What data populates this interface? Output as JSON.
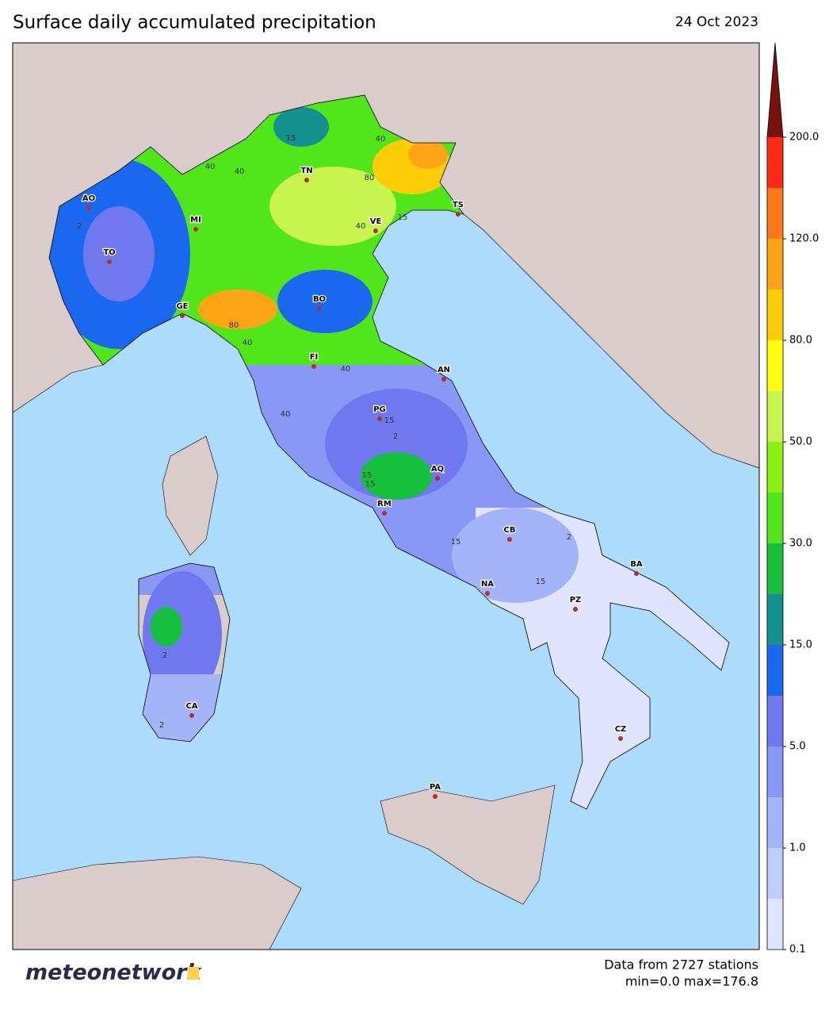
{
  "header": {
    "title": "Surface daily accumulated precipitation",
    "date": "24 Oct 2023"
  },
  "map": {
    "stations": [
      "AO",
      "TO",
      "MI",
      "GE",
      "TN",
      "VE",
      "TS",
      "BO",
      "FI",
      "AN",
      "PG",
      "AQ",
      "RM",
      "CB",
      "NA",
      "BA",
      "PZ",
      "CA",
      "CZ",
      "PA"
    ],
    "contour_labels": [
      "15",
      "40",
      "40",
      "80",
      "40",
      "15",
      "40",
      "80",
      "40",
      "40",
      "40",
      "15",
      "2",
      "15",
      "15",
      "2",
      "15",
      "2",
      "2",
      "15",
      "2"
    ]
  },
  "legend": {
    "colors": [
      "#dee5fd",
      "#bfcdfb",
      "#a3b4f8",
      "#8898f4",
      "#6f78ee",
      "#1a68f0",
      "#14908f",
      "#16c03c",
      "#50e61a",
      "#8cef12",
      "#c8f550",
      "#ffff10",
      "#ffcc08",
      "#ffa414",
      "#ff7818",
      "#ff2a14",
      "#7a1010"
    ],
    "ticks": [
      0.1,
      {
        "value": 1,
        "label": "1.0"
      },
      {
        "value": 5,
        "label": "5.0"
      },
      {
        "value": 15,
        "label": "15.0"
      },
      {
        "value": 30,
        "label": "30.0"
      },
      {
        "value": 50,
        "label": "50.0"
      },
      {
        "value": 80,
        "label": "80.0"
      },
      {
        "value": 120,
        "label": "120.0"
      },
      {
        "value": 200,
        "label": "200.0"
      }
    ]
  },
  "footer": {
    "logo": "meteonetwork",
    "stations_note": "Data from 2727 stations",
    "range_note": "min=0.0 max=176.8"
  }
}
